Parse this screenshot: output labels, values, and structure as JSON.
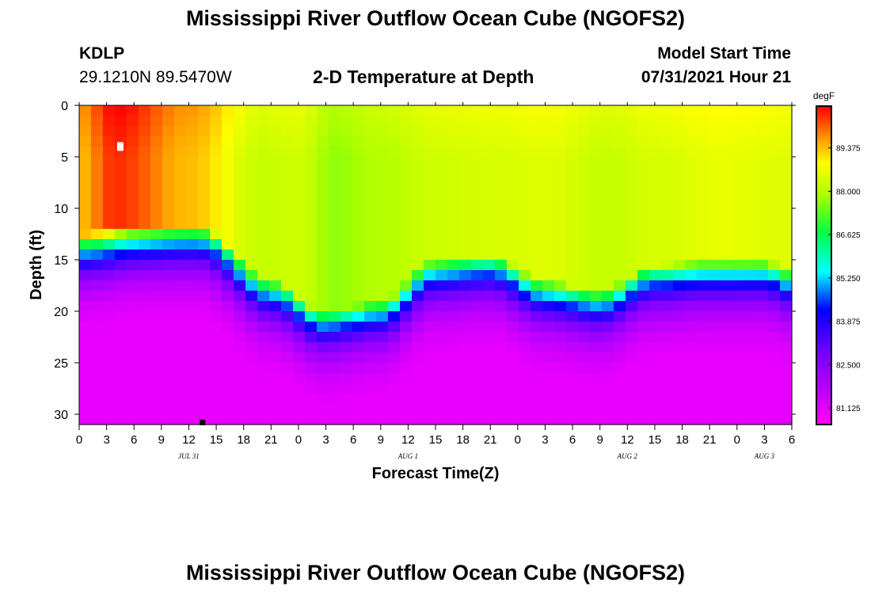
{
  "header": {
    "title": "Mississippi River Outflow Ocean Cube (NGOFS2)",
    "station_id": "KDLP",
    "station_coords": "29.1210N  89.5470W",
    "plot_title": "2-D Temperature at Depth",
    "model_start_label": "Model Start Time",
    "model_start_value": "07/31/2021 Hour 21"
  },
  "footer": {
    "title": "Mississippi River Outflow Ocean Cube (NGOFS2)"
  },
  "chart_data": {
    "type": "heatmap",
    "title": "2-D Temperature at Depth",
    "xlabel": "Forecast Time(Z)",
    "ylabel": "Depth (ft)",
    "units": "degF",
    "x_range_hours": [
      0,
      78
    ],
    "y_range_ft": [
      0,
      31
    ],
    "x_ticks": [
      {
        "hour": 0,
        "label": "0"
      },
      {
        "hour": 3,
        "label": "3"
      },
      {
        "hour": 6,
        "label": "6"
      },
      {
        "hour": 9,
        "label": "9"
      },
      {
        "hour": 12,
        "label": "12"
      },
      {
        "hour": 15,
        "label": "15"
      },
      {
        "hour": 18,
        "label": "18"
      },
      {
        "hour": 21,
        "label": "21"
      },
      {
        "hour": 24,
        "label": "0"
      },
      {
        "hour": 27,
        "label": "3"
      },
      {
        "hour": 30,
        "label": "6"
      },
      {
        "hour": 33,
        "label": "9"
      },
      {
        "hour": 36,
        "label": "12"
      },
      {
        "hour": 39,
        "label": "15"
      },
      {
        "hour": 42,
        "label": "18"
      },
      {
        "hour": 45,
        "label": "21"
      },
      {
        "hour": 48,
        "label": "0"
      },
      {
        "hour": 51,
        "label": "3"
      },
      {
        "hour": 54,
        "label": "6"
      },
      {
        "hour": 57,
        "label": "9"
      },
      {
        "hour": 60,
        "label": "12"
      },
      {
        "hour": 63,
        "label": "15"
      },
      {
        "hour": 66,
        "label": "18"
      },
      {
        "hour": 69,
        "label": "21"
      },
      {
        "hour": 72,
        "label": "0"
      },
      {
        "hour": 75,
        "label": "3"
      },
      {
        "hour": 78,
        "label": "6"
      }
    ],
    "date_labels": [
      {
        "hour": 12,
        "label": "JUL 31"
      },
      {
        "hour": 36,
        "label": "AUG 1"
      },
      {
        "hour": 60,
        "label": "AUG 2"
      },
      {
        "hour": 75,
        "label": "AUG 3"
      }
    ],
    "y_ticks": [
      0,
      5,
      10,
      15,
      20,
      25,
      30
    ],
    "colorbar": {
      "label": "degF",
      "min": 80.6,
      "max": 90.7,
      "ticks": [
        "89.375",
        "88.000",
        "86.625",
        "85.250",
        "83.875",
        "82.500",
        "81.125"
      ],
      "tick_values": [
        89.375,
        88.0,
        86.625,
        85.25,
        83.875,
        82.5,
        81.125
      ]
    },
    "field_model": {
      "thermocline_depth_ft": [
        [
          0,
          17.5
        ],
        [
          6,
          16.5
        ],
        [
          13,
          16.5
        ],
        [
          21,
          22
        ],
        [
          27,
          25
        ],
        [
          33,
          24
        ],
        [
          39,
          20
        ],
        [
          45,
          19.5
        ],
        [
          51,
          22
        ],
        [
          57,
          23
        ],
        [
          63,
          20.5
        ],
        [
          69,
          20
        ],
        [
          75,
          20
        ],
        [
          78,
          21
        ]
      ],
      "surface_temperature_degF": [
        [
          0,
          89.4
        ],
        [
          4,
          90.4
        ],
        [
          12,
          89.4
        ],
        [
          20,
          88.2
        ],
        [
          24,
          88.3
        ],
        [
          28,
          87.7
        ],
        [
          33,
          88.0
        ],
        [
          39,
          88.3
        ],
        [
          45,
          88.4
        ],
        [
          51,
          88.5
        ],
        [
          58,
          88.2
        ],
        [
          63,
          88.4
        ],
        [
          70,
          88.6
        ],
        [
          78,
          88.5
        ]
      ],
      "bottom_temperature_degF": 81.0
    },
    "markers": [
      {
        "name": "max-marker",
        "hour": 4.5,
        "depth_ft": 4
      },
      {
        "name": "min-marker",
        "hour": 13.5,
        "depth_ft": 30.8
      }
    ]
  }
}
